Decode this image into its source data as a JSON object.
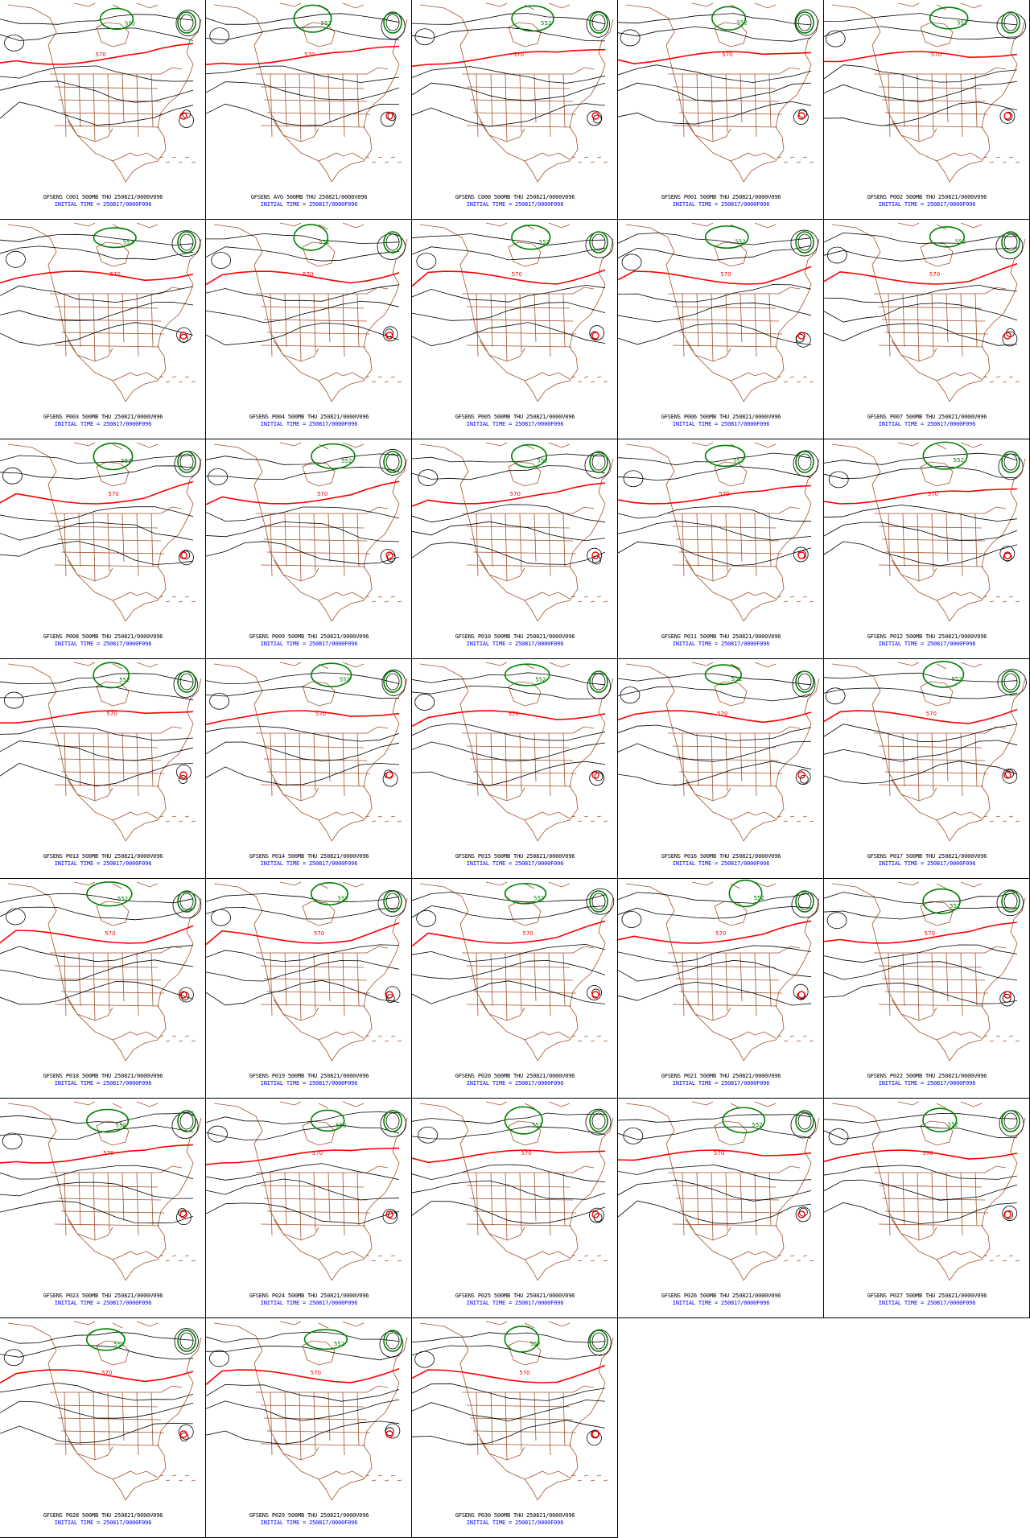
{
  "panels": [
    {
      "title": "GFSENS C001 500MB THU 250821/0000V096",
      "init": "INITIAL TIME = 250817/0000F096"
    },
    {
      "title": "GFSENS AVG 500MB THU 250821/0000V096",
      "init": "INITIAL TIME = 250817/0000F096"
    },
    {
      "title": "GFSENS C000 500MB THU 250821/0000V096",
      "init": "INITIAL TIME = 250817/0000F096"
    },
    {
      "title": "GFSENS P001 500MB THU 250821/0000V096",
      "init": "INITIAL TIME = 250817/0000F096"
    },
    {
      "title": "GFSENS P002 500MB THU 250821/0000V096",
      "init": "INITIAL TIME = 250817/0000F096"
    },
    {
      "title": "GFSENS P003 500MB THU 250821/0000V096",
      "init": "INITIAL TIME = 250817/0000F096"
    },
    {
      "title": "GFSENS P004 500MB THU 250821/0000V096",
      "init": "INITIAL TIME = 250817/0000F096"
    },
    {
      "title": "GFSENS P005 500MB THU 250821/0000V096",
      "init": "INITIAL TIME = 250817/0000F096"
    },
    {
      "title": "GFSENS P006 500MB THU 250821/0000V096",
      "init": "INITIAL TIME = 250817/0000F096"
    },
    {
      "title": "GFSENS P007 500MB THU 250821/0000V096",
      "init": "INITIAL TIME = 250817/0000F096"
    },
    {
      "title": "GFSENS P008 500MB THU 250821/0000V096",
      "init": "INITIAL TIME = 250817/0000F096"
    },
    {
      "title": "GFSENS P009 500MB THU 250821/0000V096",
      "init": "INITIAL TIME = 250817/0000F096"
    },
    {
      "title": "GFSENS P010 500MB THU 250821/0000V096",
      "init": "INITIAL TIME = 250817/0000F096"
    },
    {
      "title": "GFSENS P011 500MB THU 250821/0000V096",
      "init": "INITIAL TIME = 250817/0000F096"
    },
    {
      "title": "GFSENS P012 500MB THU 250821/0000V096",
      "init": "INITIAL TIME = 250817/0000F096"
    },
    {
      "title": "GFSENS P013 500MB THU 250821/0000V096",
      "init": "INITIAL TIME = 250817/0000F096"
    },
    {
      "title": "GFSENS P014 500MB THU 250821/0000V096",
      "init": "INITIAL TIME = 250817/0000F096"
    },
    {
      "title": "GFSENS P015 500MB THU 250821/0000V096",
      "init": "INITIAL TIME = 250817/0000F096"
    },
    {
      "title": "GFSENS P016 500MB THU 250821/0000V096",
      "init": "INITIAL TIME = 250817/0000F096"
    },
    {
      "title": "GFSENS P017 500MB THU 250821/0000V096",
      "init": "INITIAL TIME = 250817/0000F096"
    },
    {
      "title": "GFSENS P018 500MB THU 250821/0000V096",
      "init": "INITIAL TIME = 250817/0000F096"
    },
    {
      "title": "GFSENS P019 500MB THU 250821/0000V096",
      "init": "INITIAL TIME = 250817/0000F096"
    },
    {
      "title": "GFSENS P020 500MB THU 250821/0000V096",
      "init": "INITIAL TIME = 250817/0000F096"
    },
    {
      "title": "GFSENS P021 500MB THU 250821/0000V096",
      "init": "INITIAL TIME = 250817/0000F096"
    },
    {
      "title": "GFSENS P022 500MB THU 250821/0000V096",
      "init": "INITIAL TIME = 250817/0000F096"
    },
    {
      "title": "GFSENS P023 500MB THU 250821/0000V096",
      "init": "INITIAL TIME = 250817/0000F096"
    },
    {
      "title": "GFSENS P024 500MB THU 250821/0000V096",
      "init": "INITIAL TIME = 250817/0000F096"
    },
    {
      "title": "GFSENS P025 500MB THU 250821/0000V096",
      "init": "INITIAL TIME = 250817/0000F096"
    },
    {
      "title": "GFSENS P026 500MB THU 250821/0000V096",
      "init": "INITIAL TIME = 250817/0000F096"
    },
    {
      "title": "GFSENS P027 500MB THU 250821/0000V096",
      "init": "INITIAL TIME = 250817/0000F096"
    },
    {
      "title": "GFSENS P028 500MB THU 250821/0000V096",
      "init": "INITIAL TIME = 250817/0000F096"
    },
    {
      "title": "GFSENS P029 500MB THU 250821/0000V096",
      "init": "INITIAL TIME = 250817/0000F096"
    },
    {
      "title": "GFSENS P030 500MB THU 250821/0000V096",
      "init": "INITIAL TIME = 250817/0000F096"
    }
  ],
  "contour_labels": {
    "red": "570",
    "green": "552"
  },
  "colors": {
    "contour_main": "#000000",
    "contour_570": "#ff0000",
    "contour_552": "#008000",
    "borders": "#a0522d",
    "title_text": "#000000",
    "init_text": "#0000ff",
    "background": "#ffffff"
  }
}
